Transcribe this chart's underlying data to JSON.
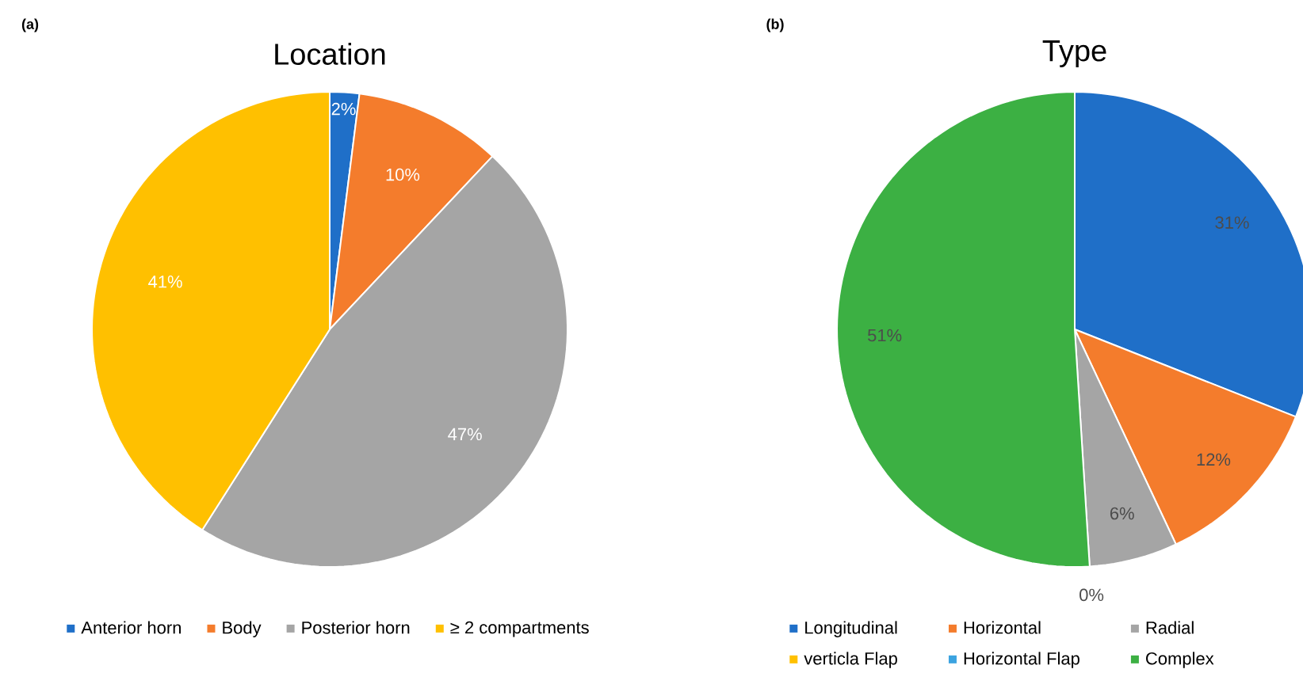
{
  "chart_data": [
    {
      "type": "pie",
      "title": "Location",
      "annotations": [
        "(a)"
      ],
      "categories": [
        "Anterior horn",
        "Body",
        "Posterior horn",
        "≥ 2 compartments"
      ],
      "values": [
        2,
        10,
        47,
        41
      ],
      "colors": [
        "#1f6fc8",
        "#f47c2c",
        "#a5a5a5",
        "#ffc000"
      ],
      "value_labels": [
        "2%",
        "10%",
        "47%",
        "41%"
      ],
      "legend": "bottom"
    },
    {
      "type": "pie",
      "title": "Type",
      "annotations": [
        "(b)"
      ],
      "categories": [
        "Longitudinal",
        "Horizontal",
        "Radial",
        "verticla Flap",
        "Horizontal Flap",
        "Complex"
      ],
      "values": [
        31,
        12,
        6,
        0,
        0,
        51
      ],
      "colors": [
        "#1f6fc8",
        "#f47c2c",
        "#a5a5a5",
        "#ffc000",
        "#3ba3e0",
        "#3cb043"
      ],
      "value_labels": [
        "31%",
        "12%",
        "6%",
        "0%",
        null,
        "51%"
      ],
      "legend": "bottom"
    }
  ]
}
